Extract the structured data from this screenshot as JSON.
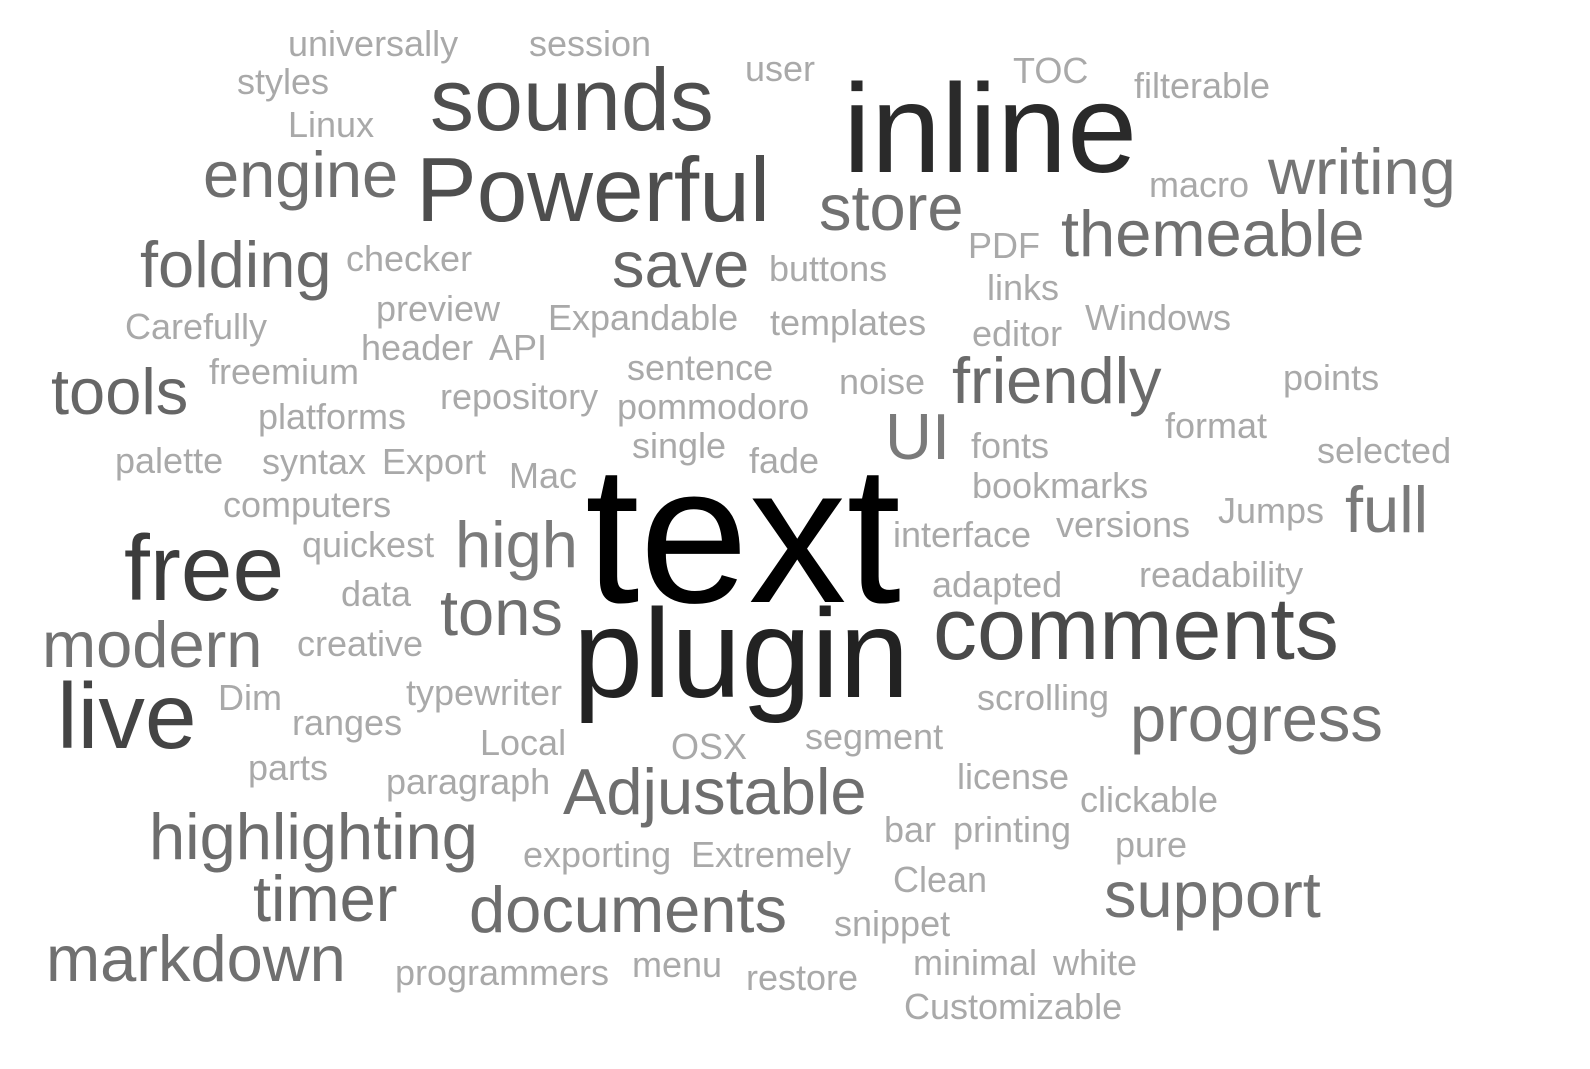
{
  "words": [
    {
      "id": "text",
      "text": "text",
      "color": "#000000"
    },
    {
      "id": "inline",
      "text": "inline",
      "color": "#2a2a2a"
    },
    {
      "id": "plugin",
      "text": "plugin",
      "color": "#222222"
    },
    {
      "id": "sounds",
      "text": "sounds",
      "color": "#4e4e4e"
    },
    {
      "id": "powerful",
      "text": "Powerful",
      "color": "#4e4e4e"
    },
    {
      "id": "free",
      "text": "free",
      "color": "#3c3c3c"
    },
    {
      "id": "live",
      "text": "live",
      "color": "#444444"
    },
    {
      "id": "comments",
      "text": "comments",
      "color": "#4a4a4a"
    },
    {
      "id": "engine",
      "text": "engine",
      "color": "#6e6e6e"
    },
    {
      "id": "store",
      "text": "store",
      "color": "#717171"
    },
    {
      "id": "writing",
      "text": "writing",
      "color": "#757575"
    },
    {
      "id": "themeable",
      "text": "themeable",
      "color": "#707070"
    },
    {
      "id": "folding",
      "text": "folding",
      "color": "#6a6a6a"
    },
    {
      "id": "save",
      "text": "save",
      "color": "#666666"
    },
    {
      "id": "tools",
      "text": "tools",
      "color": "#666666"
    },
    {
      "id": "friendly",
      "text": "friendly",
      "color": "#6a6a6a"
    },
    {
      "id": "ui",
      "text": "UI",
      "color": "#7a7a7a"
    },
    {
      "id": "full",
      "text": "full",
      "color": "#7a7a7a"
    },
    {
      "id": "high",
      "text": "high",
      "color": "#7a7a7a"
    },
    {
      "id": "tons",
      "text": "tons",
      "color": "#6e6e6e"
    },
    {
      "id": "modern",
      "text": "modern",
      "color": "#737373"
    },
    {
      "id": "progress",
      "text": "progress",
      "color": "#747474"
    },
    {
      "id": "adjustable",
      "text": "Adjustable",
      "color": "#6e6e6e"
    },
    {
      "id": "highlighting",
      "text": "highlighting",
      "color": "#6d6d6d"
    },
    {
      "id": "timer",
      "text": "timer",
      "color": "#6a6a6a"
    },
    {
      "id": "documents",
      "text": "documents",
      "color": "#6e6e6e"
    },
    {
      "id": "support",
      "text": "support",
      "color": "#737373"
    },
    {
      "id": "markdown",
      "text": "markdown",
      "color": "#707070"
    },
    {
      "id": "universally",
      "text": "universally",
      "color": "#a9a9a9"
    },
    {
      "id": "session",
      "text": "session",
      "color": "#a9a9a9"
    },
    {
      "id": "styles",
      "text": "styles",
      "color": "#a9a9a9"
    },
    {
      "id": "user",
      "text": "user",
      "color": "#a9a9a9"
    },
    {
      "id": "toc",
      "text": "TOC",
      "color": "#a9a9a9"
    },
    {
      "id": "filterable",
      "text": "filterable",
      "color": "#a9a9a9"
    },
    {
      "id": "linux",
      "text": "Linux",
      "color": "#a9a9a9"
    },
    {
      "id": "macro",
      "text": "macro",
      "color": "#a9a9a9"
    },
    {
      "id": "checker",
      "text": "checker",
      "color": "#a9a9a9"
    },
    {
      "id": "pdf",
      "text": "PDF",
      "color": "#a9a9a9"
    },
    {
      "id": "buttons",
      "text": "buttons",
      "color": "#a9a9a9"
    },
    {
      "id": "links",
      "text": "links",
      "color": "#a9a9a9"
    },
    {
      "id": "preview",
      "text": "preview",
      "color": "#a9a9a9"
    },
    {
      "id": "carefully",
      "text": "Carefully",
      "color": "#a9a9a9"
    },
    {
      "id": "expandable",
      "text": "Expandable",
      "color": "#a9a9a9"
    },
    {
      "id": "templates",
      "text": "templates",
      "color": "#a9a9a9"
    },
    {
      "id": "windows",
      "text": "Windows",
      "color": "#a9a9a9"
    },
    {
      "id": "editor",
      "text": "editor",
      "color": "#a9a9a9"
    },
    {
      "id": "header",
      "text": "header",
      "color": "#a9a9a9"
    },
    {
      "id": "api",
      "text": "API",
      "color": "#a9a9a9"
    },
    {
      "id": "freemium",
      "text": "freemium",
      "color": "#a9a9a9"
    },
    {
      "id": "sentence",
      "text": "sentence",
      "color": "#a9a9a9"
    },
    {
      "id": "noise",
      "text": "noise",
      "color": "#a9a9a9"
    },
    {
      "id": "points",
      "text": "points",
      "color": "#a9a9a9"
    },
    {
      "id": "repository",
      "text": "repository",
      "color": "#a9a9a9"
    },
    {
      "id": "platforms",
      "text": "platforms",
      "color": "#a9a9a9"
    },
    {
      "id": "pommodoro",
      "text": "pommodoro",
      "color": "#a9a9a9"
    },
    {
      "id": "format",
      "text": "format",
      "color": "#a9a9a9"
    },
    {
      "id": "single",
      "text": "single",
      "color": "#a9a9a9"
    },
    {
      "id": "fonts",
      "text": "fonts",
      "color": "#a9a9a9"
    },
    {
      "id": "selected",
      "text": "selected",
      "color": "#a9a9a9"
    },
    {
      "id": "palette",
      "text": "palette",
      "color": "#a9a9a9"
    },
    {
      "id": "syntax",
      "text": "syntax",
      "color": "#a9a9a9"
    },
    {
      "id": "export",
      "text": "Export",
      "color": "#a9a9a9"
    },
    {
      "id": "mac",
      "text": "Mac",
      "color": "#a9a9a9"
    },
    {
      "id": "fade",
      "text": "fade",
      "color": "#a9a9a9"
    },
    {
      "id": "bookmarks",
      "text": "bookmarks",
      "color": "#a9a9a9"
    },
    {
      "id": "computers",
      "text": "computers",
      "color": "#a9a9a9"
    },
    {
      "id": "jumps",
      "text": "Jumps",
      "color": "#a9a9a9"
    },
    {
      "id": "interface",
      "text": "interface",
      "color": "#a9a9a9"
    },
    {
      "id": "versions",
      "text": "versions",
      "color": "#a9a9a9"
    },
    {
      "id": "quickest",
      "text": "quickest",
      "color": "#a9a9a9"
    },
    {
      "id": "readability",
      "text": "readability",
      "color": "#a9a9a9"
    },
    {
      "id": "adapted",
      "text": "adapted",
      "color": "#a9a9a9"
    },
    {
      "id": "data",
      "text": "data",
      "color": "#a9a9a9"
    },
    {
      "id": "creative",
      "text": "creative",
      "color": "#a9a9a9"
    },
    {
      "id": "dim",
      "text": "Dim",
      "color": "#a9a9a9"
    },
    {
      "id": "typewriter",
      "text": "typewriter",
      "color": "#a9a9a9"
    },
    {
      "id": "scrolling",
      "text": "scrolling",
      "color": "#a9a9a9"
    },
    {
      "id": "ranges",
      "text": "ranges",
      "color": "#a9a9a9"
    },
    {
      "id": "local",
      "text": "Local",
      "color": "#a9a9a9"
    },
    {
      "id": "osx",
      "text": "OSX",
      "color": "#a9a9a9"
    },
    {
      "id": "segment",
      "text": "segment",
      "color": "#a9a9a9"
    },
    {
      "id": "parts",
      "text": "parts",
      "color": "#a9a9a9"
    },
    {
      "id": "paragraph",
      "text": "paragraph",
      "color": "#a9a9a9"
    },
    {
      "id": "license",
      "text": "license",
      "color": "#a9a9a9"
    },
    {
      "id": "clickable",
      "text": "clickable",
      "color": "#a9a9a9"
    },
    {
      "id": "bar",
      "text": "bar",
      "color": "#a9a9a9"
    },
    {
      "id": "printing",
      "text": "printing",
      "color": "#a9a9a9"
    },
    {
      "id": "pure",
      "text": "pure",
      "color": "#a9a9a9"
    },
    {
      "id": "exporting",
      "text": "exporting",
      "color": "#a9a9a9"
    },
    {
      "id": "extremely",
      "text": "Extremely",
      "color": "#a9a9a9"
    },
    {
      "id": "clean",
      "text": "Clean",
      "color": "#a9a9a9"
    },
    {
      "id": "snippet",
      "text": "snippet",
      "color": "#a9a9a9"
    },
    {
      "id": "programmers",
      "text": "programmers",
      "color": "#a9a9a9"
    },
    {
      "id": "menu",
      "text": "menu",
      "color": "#a9a9a9"
    },
    {
      "id": "restore",
      "text": "restore",
      "color": "#a9a9a9"
    },
    {
      "id": "minimal",
      "text": "minimal",
      "color": "#a9a9a9"
    },
    {
      "id": "white",
      "text": "white",
      "color": "#a9a9a9"
    },
    {
      "id": "customizable",
      "text": "Customizable",
      "color": "#a9a9a9"
    }
  ]
}
